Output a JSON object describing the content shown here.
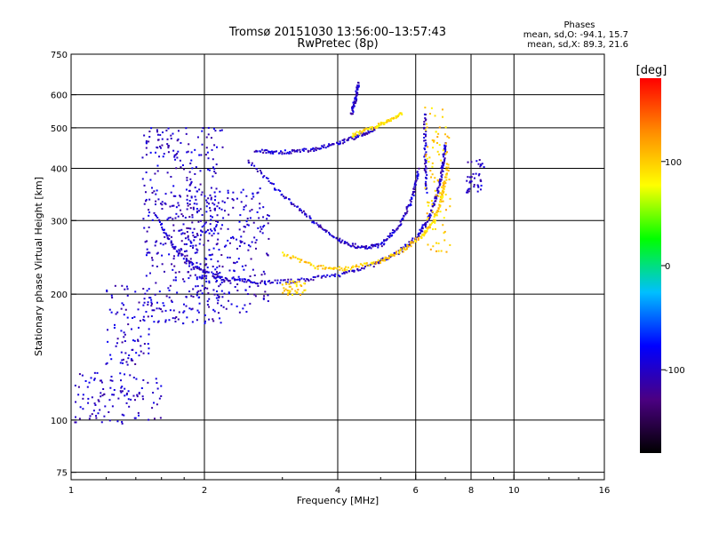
{
  "chart_data": {
    "type": "scatter",
    "title": "Tromsø 20151030 13:56:00–13:57:43",
    "subtitle": "RwPretec (8p)",
    "xlabel": "Frequency [MHz]",
    "ylabel": "Stationary phase Virtual Height [km]",
    "x_scale": "log",
    "y_scale": "log",
    "xlim": [
      1,
      16
    ],
    "ylim": [
      72,
      750
    ],
    "x_ticks": [
      1,
      2,
      4,
      6,
      8,
      10,
      16
    ],
    "x_tick_labels": [
      "1",
      "2",
      "4",
      "6",
      "8",
      "10",
      "16"
    ],
    "y_ticks": [
      75,
      100,
      200,
      300,
      400,
      500,
      600,
      750
    ],
    "y_tick_labels": [
      "75",
      "100",
      "200",
      "300",
      "400",
      "500",
      "600",
      "750"
    ],
    "grid": true,
    "phase_box": {
      "heading": "Phases",
      "line1": "mean, sd,O: -94.1, 15.7",
      "line2": "mean, sd,X:  89.3, 21.6"
    },
    "colorbar": {
      "label": "[deg]",
      "range": [
        -180,
        180
      ],
      "ticks": [
        -100,
        0,
        100
      ],
      "tick_labels": [
        "-100",
        "0",
        "100"
      ],
      "stops": [
        "#000000",
        "#4b0082",
        "#0000ff",
        "#00bfff",
        "#00ff00",
        "#ffff00",
        "#ff8c00",
        "#ff0000"
      ]
    },
    "traces": [
      {
        "name": "",
        "shape": "curve",
        "phase": -100,
        "points": [
          [
            1.55,
            310
          ],
          [
            1.7,
            260
          ],
          [
            1.9,
            232
          ],
          [
            2.2,
            218
          ],
          [
            2.6,
            214
          ],
          [
            3.2,
            215
          ],
          [
            4.0,
            222
          ],
          [
            4.8,
            235
          ],
          [
            5.5,
            252
          ],
          [
            6.0,
            272
          ],
          [
            6.4,
            300
          ],
          [
            6.7,
            345
          ],
          [
            6.9,
            400
          ],
          [
            7.0,
            460
          ]
        ]
      },
      {
        "name": "",
        "shape": "curve",
        "phase": 100,
        "points": [
          [
            3.0,
            250
          ],
          [
            3.6,
            232
          ],
          [
            4.2,
            230
          ],
          [
            5.0,
            240
          ],
          [
            5.6,
            255
          ],
          [
            6.2,
            275
          ],
          [
            6.6,
            300
          ],
          [
            6.9,
            345
          ],
          [
            7.1,
            410
          ]
        ]
      },
      {
        "name": "",
        "shape": "curve",
        "phase": -100,
        "points": [
          [
            2.6,
            440
          ],
          [
            3.0,
            437
          ],
          [
            3.5,
            443
          ],
          [
            4.0,
            458
          ],
          [
            4.5,
            480
          ],
          [
            4.9,
            500
          ]
        ]
      },
      {
        "name": "",
        "shape": "curve",
        "phase": 90,
        "points": [
          [
            4.3,
            480
          ],
          [
            4.8,
            500
          ],
          [
            5.2,
            520
          ],
          [
            5.6,
            540
          ]
        ]
      },
      {
        "name": "",
        "shape": "curve",
        "phase": -100,
        "points": [
          [
            2.5,
            420
          ],
          [
            3.0,
            345
          ],
          [
            3.5,
            300
          ],
          [
            4.0,
            270
          ],
          [
            4.5,
            258
          ],
          [
            5.0,
            262
          ],
          [
            5.5,
            290
          ],
          [
            5.9,
            340
          ],
          [
            6.1,
            400
          ]
        ]
      },
      {
        "name": "",
        "shape": "curve",
        "phase": -100,
        "points": [
          [
            4.3,
            540
          ],
          [
            4.4,
            590
          ],
          [
            4.45,
            640
          ]
        ]
      },
      {
        "name": "",
        "shape": "curve",
        "phase": -100,
        "points": [
          [
            6.3,
            540
          ],
          [
            6.3,
            430
          ],
          [
            6.35,
            350
          ]
        ]
      },
      {
        "name": "",
        "shape": "cloud",
        "phase": -100,
        "x": [
          1.45,
          2.2
        ],
        "y": [
          170,
          500
        ]
      },
      {
        "name": "",
        "shape": "cloud",
        "phase": -100,
        "x": [
          1.2,
          1.5
        ],
        "y": [
          135,
          210
        ]
      },
      {
        "name": "",
        "shape": "cloud",
        "phase": -100,
        "x": [
          1.02,
          1.6
        ],
        "y": [
          98,
          130
        ]
      },
      {
        "name": "",
        "shape": "cloud",
        "phase": -100,
        "x": [
          1.8,
          2.8
        ],
        "y": [
          180,
          360
        ]
      },
      {
        "name": "",
        "shape": "cloud",
        "phase": 100,
        "x": [
          3.0,
          3.4
        ],
        "y": [
          198,
          215
        ]
      },
      {
        "name": "",
        "shape": "cloud",
        "phase": 100,
        "x": [
          6.3,
          7.2
        ],
        "y": [
          250,
          560
        ]
      },
      {
        "name": "",
        "shape": "cloud",
        "phase": -100,
        "x": [
          7.8,
          8.6
        ],
        "y": [
          350,
          420
        ]
      }
    ]
  }
}
